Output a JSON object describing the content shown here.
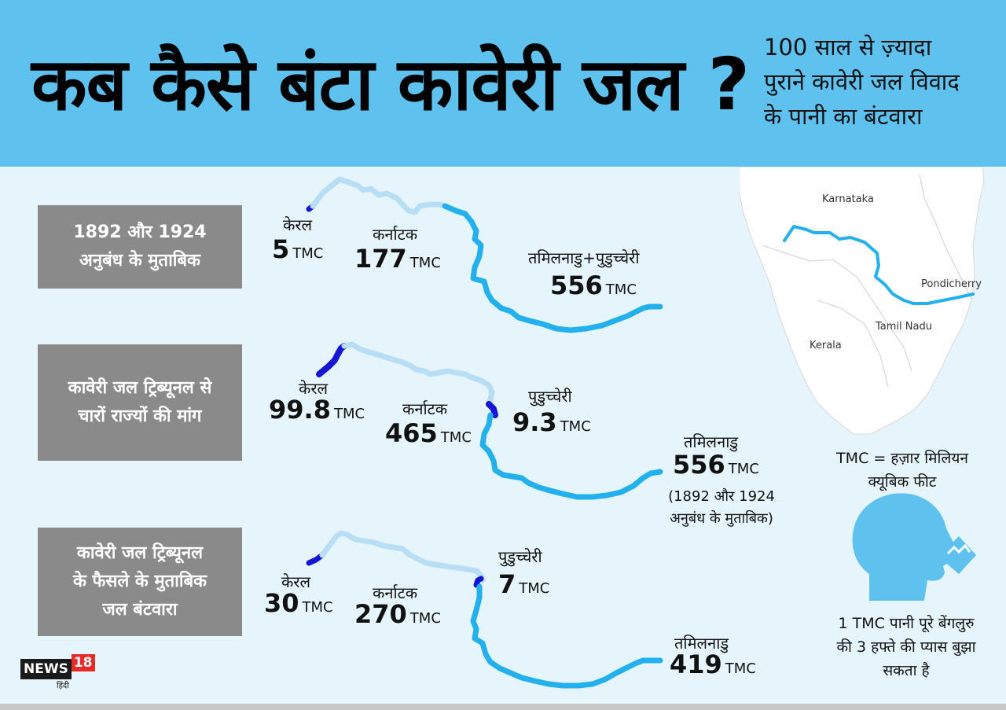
{
  "header": {
    "title": "कब कैसे बंटा कावेरी जल ?",
    "subtitle": [
      "100 साल से ज़्यादा",
      "पुराने कावेरी जल विवाद",
      "के पानी का बंटवारा"
    ]
  },
  "sections": [
    {
      "box": [
        "1892 और 1924",
        "अनुबंध के मुताबिक"
      ],
      "kerala": {
        "label": "केरल",
        "value": "5",
        "unit": "TMC"
      },
      "karnataka": {
        "label": "कर्नाटक",
        "value": "177",
        "unit": "TMC"
      },
      "tamilnadu": {
        "label": "तमिलनाडु+पुडुच्चेरी",
        "value": "556",
        "unit": "TMC"
      }
    },
    {
      "box": [
        "कावेरी जल ट्रिब्यूनल से",
        "चारों राज्यों की मांग"
      ],
      "kerala": {
        "label": "केरल",
        "value": "99.8",
        "unit": "TMC"
      },
      "karnataka": {
        "label": "कर्नाटक",
        "value": "465",
        "unit": "TMC"
      },
      "puducherry": {
        "label": "पुडुच्चेरी",
        "value": "9.3",
        "unit": "TMC"
      },
      "tamilnadu": {
        "label": "तमिलनाडु",
        "value": "556",
        "unit": "TMC"
      },
      "note": [
        "(1892 और 1924",
        "अनुबंध के मुताबिक)"
      ]
    },
    {
      "box": [
        "कावेरी जल ट्रिब्यूनल",
        "के फैसले के मुताबिक",
        "जल बंटवारा"
      ],
      "kerala": {
        "label": "केरल",
        "value": "30",
        "unit": "TMC"
      },
      "karnataka": {
        "label": "कर्नाटक",
        "value": "270",
        "unit": "TMC"
      },
      "puducherry": {
        "label": "पुडुच्चेरी",
        "value": "7",
        "unit": "TMC"
      },
      "tamilnadu": {
        "label": "तमिलनाडु",
        "value": "419",
        "unit": "TMC"
      }
    }
  ],
  "map": {
    "labels": {
      "karnataka": "Karnataka",
      "pondicherry": "Pondicherry",
      "tamilnadu": "Tamil Nadu",
      "kerala": "Kerala"
    }
  },
  "info": {
    "tmc_def": [
      "TMC = हज़ार मिलियन",
      "क्यूबिक फीट"
    ],
    "fact": [
      "1 TMC पानी पूरे बेंगलुरु",
      "की 3 हफ्ते की प्यास बुझा",
      "सकता है"
    ]
  },
  "logo": {
    "news": "NEWS",
    "num": "18",
    "hindi": "हिंदी"
  },
  "colors": {
    "header_bg": "#5ec1ee",
    "page_bg": "#e6f4fb",
    "box_bg": "#8a8a8a",
    "river_kerala": "#1515d8",
    "river_karnataka": "#b8def5",
    "river_tamilnadu": "#23b0ec"
  },
  "icons": [
    "head-drinking-water-icon"
  ]
}
